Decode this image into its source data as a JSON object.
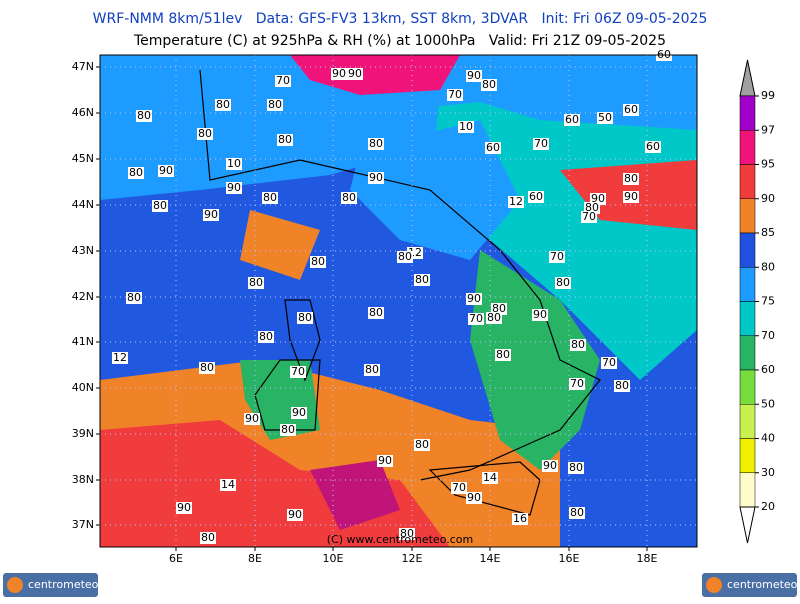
{
  "header": {
    "line1": "WRF-NMM 8km/51lev   Data: GFS-FV3 13km, SST 8km, 3DVAR   Init: Fri 06Z 09-05-2025",
    "line2": "Temperature (C) at 925hPa & RH (%) at 1000hPa   Valid: Fri 21Z 09-05-2025"
  },
  "map": {
    "lat_labels": [
      "47N",
      "46N",
      "45N",
      "44N",
      "43N",
      "42N",
      "41N",
      "40N",
      "39N",
      "38N",
      "37N"
    ],
    "lon_labels": [
      "6E",
      "8E",
      "10E",
      "12E",
      "14E",
      "16E",
      "18E"
    ],
    "contour_labels": [
      "70",
      "90",
      "90",
      "90",
      "80",
      "70",
      "80",
      "80",
      "80",
      "80",
      "80",
      "10",
      "60",
      "50",
      "60",
      "80",
      "60",
      "70",
      "60",
      "10",
      "80",
      "90",
      "90",
      "90",
      "80",
      "80",
      "12",
      "60",
      "80",
      "90",
      "90",
      "80",
      "90",
      "80",
      "70",
      "12",
      "80",
      "70",
      "80",
      "80",
      "80",
      "80",
      "80",
      "90",
      "80",
      "80",
      "80",
      "70",
      "80",
      "90",
      "80",
      "12",
      "80",
      "80",
      "70",
      "80",
      "70",
      "80",
      "70",
      "80",
      "90",
      "90",
      "80",
      "80",
      "90",
      "90",
      "80",
      "14",
      "14",
      "70",
      "90",
      "90",
      "90",
      "16",
      "80",
      "80",
      "80",
      "60"
    ],
    "credit": "(C) www.centrometeo.com"
  },
  "legend": {
    "ticks": [
      99,
      97,
      95,
      90,
      85,
      80,
      75,
      70,
      60,
      50,
      40,
      30,
      20
    ],
    "colors": [
      "#a000c8",
      "#f0147a",
      "#f03c3c",
      "#f08228",
      "#2050e0",
      "#1e9bff",
      "#00c8c8",
      "#28b464",
      "#78dc3c",
      "#c8f050",
      "#f0f000",
      "#fffccc"
    ],
    "top_color": "#a0a0a0"
  },
  "logos": [
    "centrometeo",
    "centrometeo"
  ]
}
